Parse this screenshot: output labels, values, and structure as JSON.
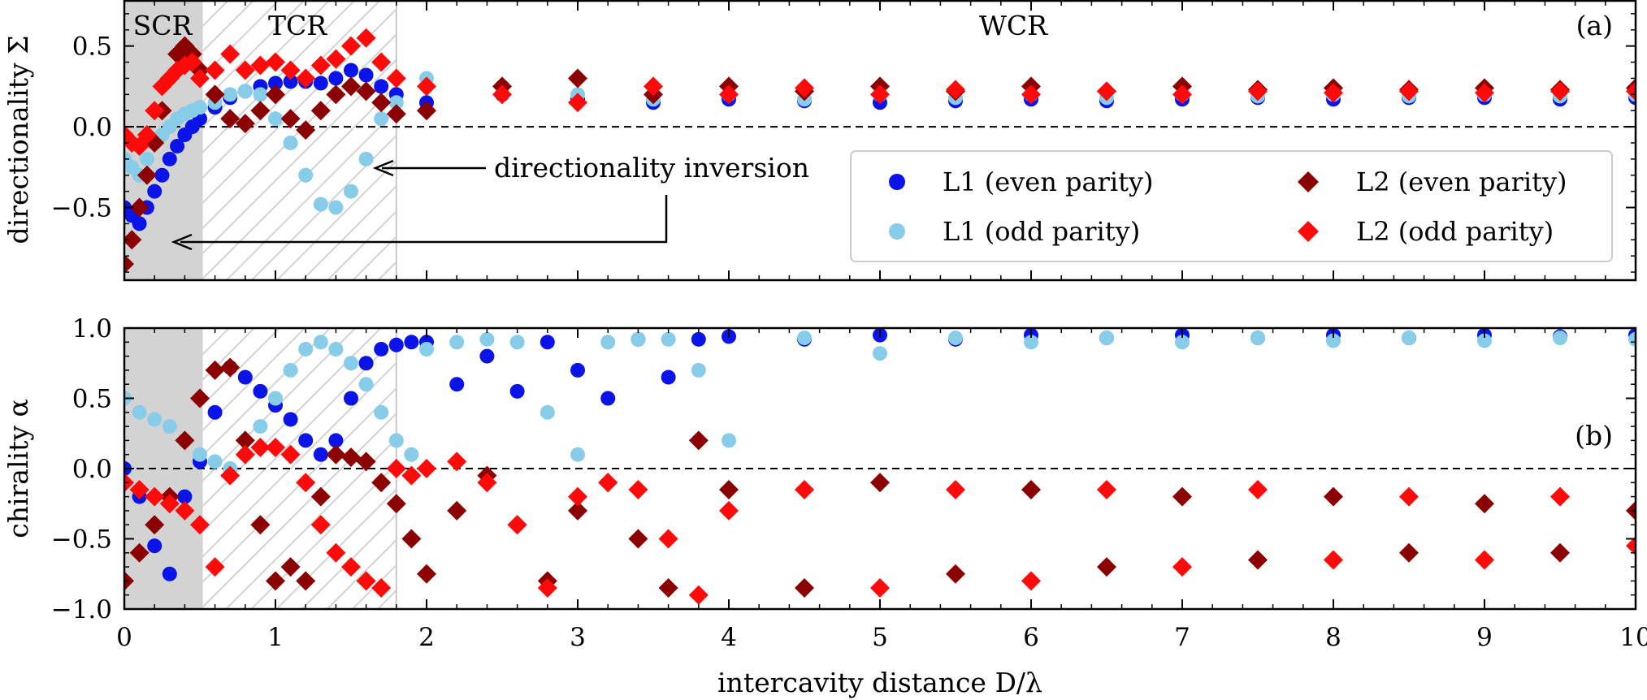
{
  "chart_data": {
    "type": "scatter",
    "xlabel": "intercavity distance D/λ",
    "xlim": [
      0,
      10
    ],
    "x_ticks": [
      "0",
      "1",
      "2",
      "3",
      "4",
      "5",
      "6",
      "7",
      "8",
      "9",
      "10"
    ],
    "regions": [
      {
        "name": "SCR",
        "from": 0,
        "to": 0.52,
        "style": "gray"
      },
      {
        "name": "TCR",
        "from": 0.52,
        "to": 1.8,
        "style": "hatched"
      },
      {
        "name": "WCR",
        "from": 1.8,
        "to": 10,
        "style": "none"
      }
    ],
    "series": [
      {
        "name": "L1 (even parity)",
        "color": "#0a14e8",
        "marker": "circle"
      },
      {
        "name": "L1 (odd parity)",
        "color": "#87cdea",
        "marker": "circle"
      },
      {
        "name": "L2 (even parity)",
        "color": "#8b0000",
        "marker": "diamond"
      },
      {
        "name": "L2 (odd parity)",
        "color": "#ff0a0a",
        "marker": "diamond"
      }
    ],
    "panels": [
      {
        "id": "a",
        "panel_label": "(a)",
        "ylabel": "directionality Σ",
        "ylim": [
          -0.95,
          0.78
        ],
        "y_ticks": [
          "0.5",
          "0.0",
          "−0.5"
        ],
        "y_tick_values": [
          0.5,
          0.0,
          -0.5
        ],
        "series_x": [
          0.0,
          0.05,
          0.1,
          0.15,
          0.2,
          0.25,
          0.3,
          0.35,
          0.4,
          0.45,
          0.5,
          0.6,
          0.7,
          0.8,
          0.9,
          1.0,
          1.1,
          1.2,
          1.3,
          1.4,
          1.5,
          1.6,
          1.7,
          1.8,
          2.0,
          2.5,
          3.0,
          3.5,
          4.0,
          4.5,
          5.0,
          5.5,
          6.0,
          6.5,
          7.0,
          7.5,
          8.0,
          8.5,
          9.0,
          9.5,
          10.0
        ],
        "series_y": [
          [
            -0.5,
            -0.55,
            -0.6,
            -0.5,
            -0.4,
            -0.3,
            -0.2,
            -0.12,
            -0.05,
            0.0,
            0.05,
            0.12,
            0.18,
            0.22,
            0.25,
            0.27,
            0.28,
            0.28,
            0.27,
            0.3,
            0.35,
            0.32,
            0.25,
            0.2,
            0.15,
            0.2,
            0.17,
            0.15,
            0.17,
            0.16,
            0.15,
            0.16,
            0.17,
            0.16,
            0.17,
            0.18,
            0.17,
            0.18,
            0.18,
            0.17,
            0.18
          ],
          [
            -0.2,
            -0.25,
            -0.3,
            -0.2,
            -0.1,
            -0.05,
            0.0,
            0.05,
            0.08,
            0.1,
            0.12,
            0.15,
            0.2,
            0.22,
            0.2,
            0.05,
            -0.1,
            -0.3,
            -0.48,
            -0.5,
            -0.4,
            -0.2,
            0.05,
            0.15,
            0.3,
            0.25,
            0.2,
            0.17,
            0.2,
            0.17,
            0.2,
            0.18,
            0.2,
            0.18,
            0.2,
            0.19,
            0.2,
            0.19,
            0.2,
            0.19,
            0.2
          ],
          [
            -0.85,
            -0.7,
            -0.5,
            -0.3,
            -0.1,
            0.1,
            0.3,
            0.45,
            0.5,
            0.45,
            0.35,
            0.2,
            0.05,
            0.02,
            0.1,
            0.2,
            0.05,
            -0.02,
            0.1,
            0.2,
            0.25,
            0.22,
            0.15,
            0.08,
            0.1,
            0.25,
            0.3,
            0.2,
            0.25,
            0.22,
            0.25,
            0.22,
            0.25,
            0.22,
            0.25,
            0.23,
            0.24,
            0.23,
            0.24,
            0.23,
            0.24
          ],
          [
            -0.05,
            -0.1,
            -0.12,
            -0.05,
            0.1,
            0.25,
            0.3,
            0.35,
            0.38,
            0.4,
            0.3,
            0.35,
            0.45,
            0.35,
            0.38,
            0.4,
            0.35,
            0.3,
            0.38,
            0.42,
            0.5,
            0.55,
            0.4,
            0.3,
            0.25,
            0.2,
            0.15,
            0.25,
            0.2,
            0.24,
            0.2,
            0.23,
            0.2,
            0.22,
            0.2,
            0.22,
            0.21,
            0.22,
            0.21,
            0.22,
            0.22
          ]
        ]
      },
      {
        "id": "b",
        "panel_label": "(b)",
        "ylabel": "chirality α",
        "ylim": [
          -1.0,
          1.0
        ],
        "y_ticks": [
          "1.0",
          "0.5",
          "0.0",
          "−0.5",
          "−1.0"
        ],
        "y_tick_values": [
          1.0,
          0.5,
          0.0,
          -0.5,
          -1.0
        ],
        "series_x": [
          0.0,
          0.1,
          0.2,
          0.3,
          0.4,
          0.5,
          0.6,
          0.7,
          0.8,
          0.9,
          1.0,
          1.1,
          1.2,
          1.3,
          1.4,
          1.5,
          1.6,
          1.7,
          1.8,
          1.9,
          2.0,
          2.2,
          2.4,
          2.6,
          2.8,
          3.0,
          3.2,
          3.4,
          3.6,
          3.8,
          4.0,
          4.5,
          5.0,
          5.5,
          6.0,
          6.5,
          7.0,
          7.5,
          8.0,
          8.5,
          9.0,
          9.5,
          10.0
        ],
        "series_y": [
          [
            0.0,
            -0.2,
            -0.55,
            -0.75,
            -0.2,
            0.05,
            0.4,
            0.72,
            0.65,
            0.55,
            0.45,
            0.35,
            0.2,
            0.1,
            0.2,
            0.5,
            0.75,
            0.85,
            0.88,
            0.9,
            0.9,
            0.6,
            0.8,
            0.55,
            0.9,
            0.7,
            0.5,
            0.92,
            0.65,
            0.92,
            0.94,
            0.92,
            0.95,
            0.92,
            0.95,
            0.93,
            0.95,
            0.93,
            0.95,
            0.93,
            0.95,
            0.94,
            0.95
          ],
          [
            0.5,
            0.4,
            0.35,
            0.3,
            0.2,
            0.1,
            0.05,
            0.0,
            0.1,
            0.3,
            0.5,
            0.7,
            0.85,
            0.9,
            0.85,
            0.75,
            0.6,
            0.4,
            0.2,
            0.1,
            0.85,
            0.9,
            0.92,
            0.9,
            0.4,
            0.1,
            0.9,
            0.92,
            0.92,
            0.7,
            0.2,
            0.93,
            0.82,
            0.93,
            0.9,
            0.93,
            0.9,
            0.93,
            0.91,
            0.93,
            0.91,
            0.93,
            0.92
          ],
          [
            -0.8,
            -0.6,
            -0.4,
            -0.2,
            0.2,
            0.5,
            0.7,
            0.72,
            0.2,
            -0.4,
            -0.8,
            -0.7,
            -0.8,
            -0.2,
            0.1,
            0.08,
            0.05,
            -0.1,
            -0.25,
            -0.5,
            -0.75,
            -0.3,
            -0.05,
            -0.4,
            -0.8,
            -0.3,
            -0.1,
            -0.5,
            -0.85,
            0.2,
            -0.15,
            -0.85,
            -0.1,
            -0.75,
            -0.15,
            -0.7,
            -0.2,
            -0.65,
            -0.2,
            -0.6,
            -0.25,
            -0.6,
            -0.3
          ],
          [
            -0.1,
            -0.15,
            -0.2,
            -0.25,
            -0.3,
            -0.4,
            -0.7,
            -0.05,
            0.1,
            0.15,
            0.15,
            0.1,
            -0.1,
            -0.4,
            -0.6,
            -0.7,
            -0.8,
            -0.85,
            0.0,
            -0.05,
            0.0,
            0.05,
            -0.1,
            -0.4,
            -0.85,
            -0.2,
            -0.1,
            -0.15,
            -0.5,
            -0.9,
            -0.3,
            -0.15,
            -0.85,
            -0.15,
            -0.8,
            -0.15,
            -0.7,
            -0.15,
            -0.65,
            -0.2,
            -0.65,
            -0.2,
            -0.55
          ]
        ]
      }
    ],
    "annotation": {
      "text": "directionality inversion"
    },
    "baseline": "dashed line at 0.0 in both panels"
  }
}
